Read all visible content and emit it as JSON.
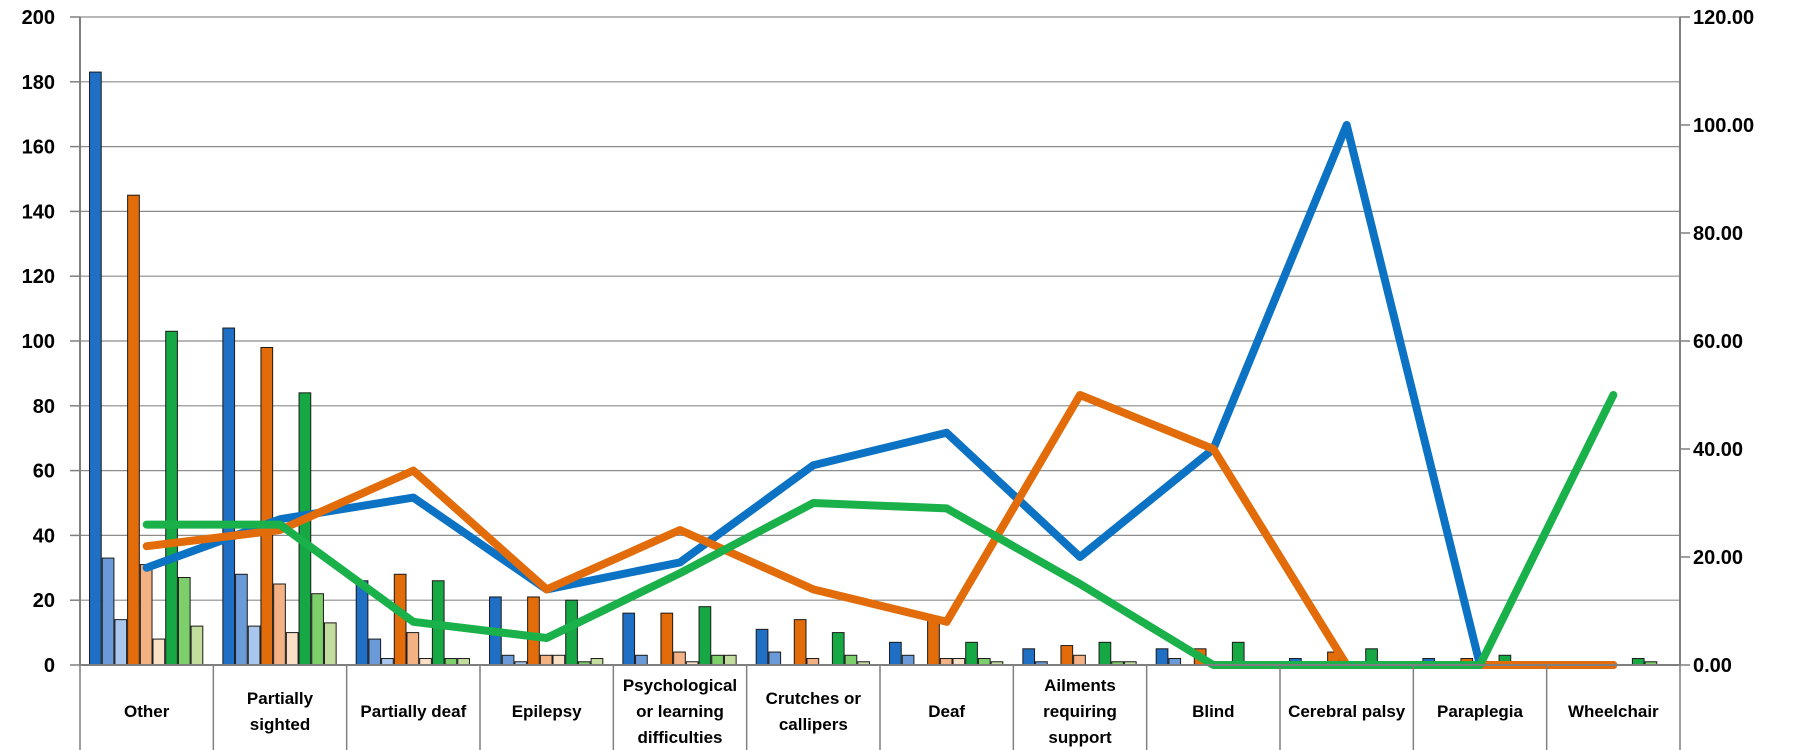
{
  "chart_data": {
    "type": "bar",
    "title": "",
    "xlabel": "",
    "ylabel": "",
    "y2label": "",
    "ylim": [
      0,
      200
    ],
    "y2lim": [
      0,
      120
    ],
    "grid": true,
    "legend": "none",
    "categories": [
      "Other",
      "Partially sighted",
      "Partially deaf",
      "Epilepsy",
      "Psychological or learning difficulties",
      "Crutches or callipers",
      "Deaf",
      "Ailments requiring support",
      "Blind",
      "Cerebral palsy",
      "Paraplegia",
      "Wheelchair"
    ],
    "category_label_lines": [
      [
        "Other"
      ],
      [
        "Partially",
        "sighted"
      ],
      [
        "Partially deaf"
      ],
      [
        "Epilepsy"
      ],
      [
        "Psychological",
        "or learning",
        "difficulties"
      ],
      [
        "Crutches or",
        "callipers"
      ],
      [
        "Deaf"
      ],
      [
        "Ailments",
        "requiring",
        "support"
      ],
      [
        "Blind"
      ],
      [
        "Cerebral palsy"
      ],
      [
        "Paraplegia"
      ],
      [
        "Wheelchair"
      ]
    ],
    "y_ticks": [
      "0",
      "20",
      "40",
      "60",
      "80",
      "100",
      "120",
      "140",
      "160",
      "180",
      "200"
    ],
    "y2_ticks": [
      "0.00",
      "20.00",
      "40.00",
      "60.00",
      "80.00",
      "100.00",
      "120.00"
    ],
    "series": [
      {
        "color": "#1f6fc5",
        "axis": "left",
        "kind": "bar",
        "values": [
          183,
          104,
          26,
          21,
          16,
          11,
          7,
          5,
          5,
          2,
          2,
          0
        ]
      },
      {
        "color": "#6a9ad8",
        "axis": "left",
        "kind": "bar",
        "values": [
          33,
          28,
          8,
          3,
          3,
          4,
          3,
          1,
          2,
          0,
          0,
          0
        ]
      },
      {
        "color": "#a9c7ee",
        "axis": "left",
        "kind": "bar",
        "values": [
          14,
          12,
          2,
          1,
          0,
          0,
          0,
          0,
          0,
          0,
          0,
          0
        ]
      },
      {
        "color": "#e36c0a",
        "axis": "left",
        "kind": "bar",
        "values": [
          145,
          98,
          28,
          21,
          16,
          14,
          15,
          6,
          5,
          4,
          2,
          0
        ]
      },
      {
        "color": "#f4b183",
        "axis": "left",
        "kind": "bar",
        "values": [
          31,
          25,
          10,
          3,
          4,
          2,
          2,
          3,
          1,
          0,
          0,
          0
        ]
      },
      {
        "color": "#fbe0c8",
        "axis": "left",
        "kind": "bar",
        "values": [
          8,
          10,
          2,
          3,
          1,
          0,
          2,
          0,
          0,
          0,
          0,
          0
        ]
      },
      {
        "color": "#15a844",
        "axis": "left",
        "kind": "bar",
        "values": [
          103,
          84,
          26,
          20,
          18,
          10,
          7,
          7,
          7,
          5,
          3,
          2
        ]
      },
      {
        "color": "#7dcf6b",
        "axis": "left",
        "kind": "bar",
        "values": [
          27,
          22,
          2,
          1,
          3,
          3,
          2,
          1,
          0,
          0,
          0,
          1
        ]
      },
      {
        "color": "#c3dd9f",
        "axis": "left",
        "kind": "bar",
        "values": [
          12,
          13,
          2,
          2,
          3,
          1,
          1,
          1,
          0,
          0,
          0,
          0
        ]
      },
      {
        "color": "#0b72c4",
        "axis": "right",
        "kind": "line",
        "values": [
          18,
          27,
          31,
          14,
          19,
          37,
          43,
          20,
          40,
          100,
          0,
          0
        ]
      },
      {
        "color": "#e36c0a",
        "axis": "right",
        "kind": "line",
        "values": [
          22,
          25,
          36,
          14,
          25,
          14,
          8,
          50,
          40,
          0,
          0,
          0
        ]
      },
      {
        "color": "#1ab14a",
        "axis": "right",
        "kind": "line",
        "values": [
          26,
          26,
          8,
          5,
          17,
          30,
          29,
          15,
          0,
          0,
          0,
          50
        ]
      }
    ]
  }
}
